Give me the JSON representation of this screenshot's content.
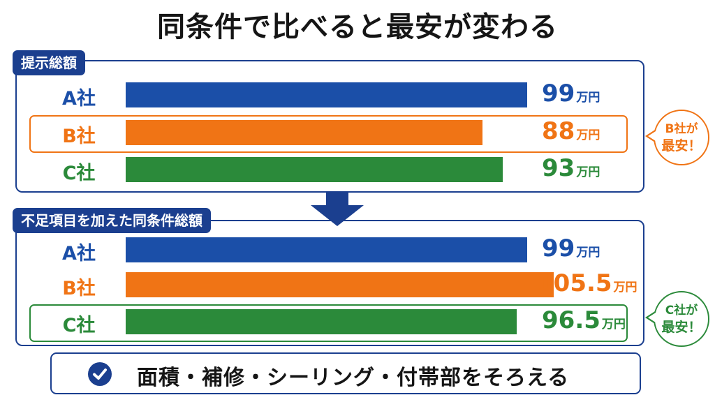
{
  "title": "同条件で比べると最安が変わる",
  "colors": {
    "A": "#1b4fa8",
    "B": "#f07415",
    "C": "#2b8a3a",
    "navy": "#1b3f8f"
  },
  "chart_data": [
    {
      "type": "bar",
      "orientation": "horizontal",
      "title": "提示総額",
      "categories": [
        "A社",
        "B社",
        "C社"
      ],
      "values": [
        99,
        88,
        93
      ],
      "value_labels": [
        "99",
        "88",
        "93"
      ],
      "unit": "万円",
      "highlight": "B社",
      "callout": [
        "B社が",
        "最安！"
      ]
    },
    {
      "type": "bar",
      "orientation": "horizontal",
      "title": "不足項目を加えた同条件総額",
      "categories": [
        "A社",
        "B社",
        "C社"
      ],
      "values": [
        99,
        105.5,
        96.5
      ],
      "value_labels": [
        "99",
        "105.5",
        "96.5"
      ],
      "unit": "万円",
      "highlight": "C社",
      "callout": [
        "C社が",
        "最安！"
      ]
    }
  ],
  "footer": {
    "text": "面積・補修・シーリング・付帯部をそろえる",
    "icon": "check-circle-icon"
  }
}
